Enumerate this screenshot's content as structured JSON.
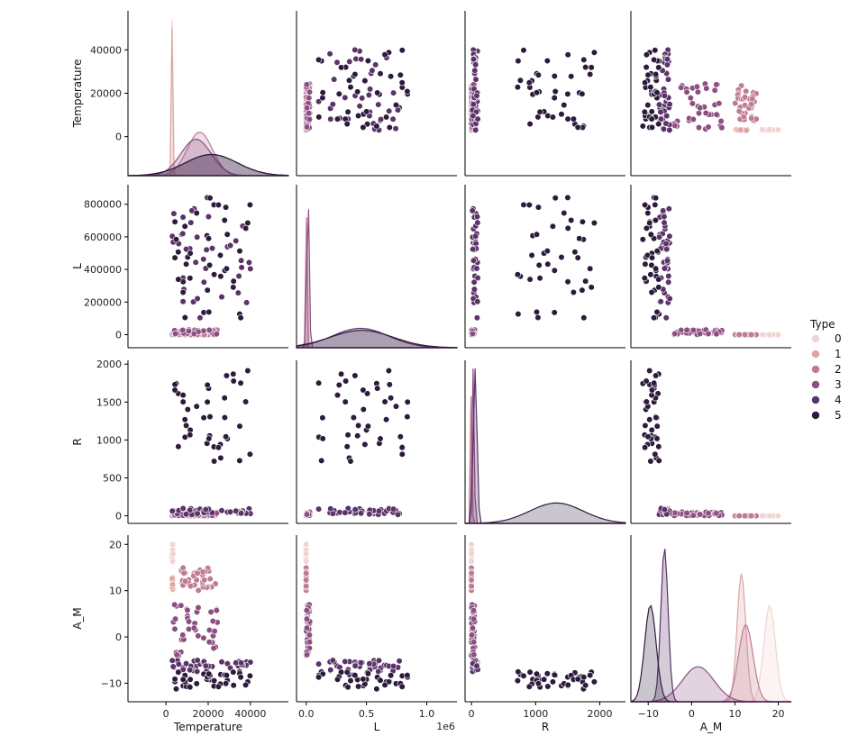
{
  "chart_data": {
    "type": "pairplot",
    "variables": [
      "Temperature",
      "L",
      "R",
      "A_M"
    ],
    "hue": "Type",
    "palette": {
      "0": "#f1d4d0",
      "1": "#dda5a2",
      "2": "#bf7b92",
      "3": "#8c4f82",
      "4": "#5a3368",
      "5": "#2d1b3c"
    },
    "legend": {
      "title": "Type",
      "entries": [
        "0",
        "1",
        "2",
        "3",
        "4",
        "5"
      ],
      "placement": "right"
    },
    "x_offset_text": {
      "L": "1e6"
    },
    "axes": {
      "Temperature": {
        "range": [
          -18000,
          58000
        ],
        "ticks": [
          0,
          20000,
          40000
        ],
        "tick_labels": [
          "0",
          "20000",
          "40000"
        ]
      },
      "L": {
        "range": [
          -80000,
          920000
        ],
        "ticks": [
          0,
          200000,
          400000,
          600000,
          800000
        ],
        "tick_labels": [
          "0",
          "200000",
          "400000",
          "600000",
          "800000"
        ],
        "x_range": [
          -0.08,
          1.25
        ],
        "x_ticks": [
          0,
          0.5,
          1.0
        ],
        "x_tick_labels": [
          "0.0",
          "0.5",
          "1.0"
        ]
      },
      "R": {
        "range": [
          -100,
          2050
        ],
        "ticks": [
          0,
          500,
          1000,
          1500,
          2000
        ],
        "tick_labels": [
          "0",
          "500",
          "1000",
          "1500",
          "2000"
        ],
        "x_range": [
          -100,
          2400
        ],
        "x_ticks": [
          0,
          1000,
          2000
        ],
        "x_tick_labels": [
          "0",
          "1000",
          "2000"
        ]
      },
      "A_M": {
        "range": [
          -14,
          22
        ],
        "ticks": [
          -10,
          0,
          10,
          20
        ],
        "tick_labels": [
          "−10",
          "0",
          "10",
          "20"
        ],
        "x_range": [
          -14,
          23
        ],
        "x_ticks": [
          -10,
          0,
          10,
          20
        ],
        "x_tick_labels": [
          "−10",
          "0",
          "10",
          "20"
        ]
      }
    },
    "groups": {
      "0": {
        "Temperature": [
          [
            2600,
            3600
          ],
          [
            2800,
            3400
          ],
          [
            3000,
            3200
          ]
        ],
        "L": [
          [
            0.0001,
            0.003
          ]
        ],
        "R": [
          [
            0.08,
            0.2
          ]
        ],
        "A_M": [
          [
            16,
            20
          ]
        ]
      },
      "1": {
        "Temperature": [
          [
            2600,
            3600
          ],
          [
            2800,
            3400
          ]
        ],
        "L": [
          [
            0.0004,
            0.005
          ]
        ],
        "R": [
          [
            0.1,
            0.4
          ]
        ],
        "A_M": [
          [
            10,
            13
          ]
        ]
      },
      "2": {
        "Temperature": [
          [
            7000,
            25000
          ]
        ],
        "L": [
          [
            8e-05,
            0.002
          ]
        ],
        "R": [
          [
            0.008,
            0.02
          ]
        ],
        "A_M": [
          [
            10,
            15
          ]
        ]
      },
      "3": {
        "Temperature": [
          [
            3500,
            25000
          ]
        ],
        "L": [
          [
            0.1,
            30000
          ]
        ],
        "R": [
          [
            0.5,
            50
          ]
        ],
        "A_M": [
          [
            -4,
            7
          ]
        ]
      },
      "4": {
        "Temperature": [
          [
            3000,
            40000
          ]
        ],
        "L": [
          [
            100000,
            800000
          ]
        ],
        "R": [
          [
            15,
            100
          ]
        ],
        "A_M": [
          [
            -7.5,
            -5
          ]
        ]
      },
      "5": {
        "Temperature": [
          [
            3000,
            40000
          ]
        ],
        "L": [
          [
            70000,
            850000
          ]
        ],
        "R": [
          [
            700,
            1950
          ]
        ],
        "A_M": [
          [
            -11.5,
            -7.5
          ]
        ]
      }
    },
    "grid": false
  }
}
